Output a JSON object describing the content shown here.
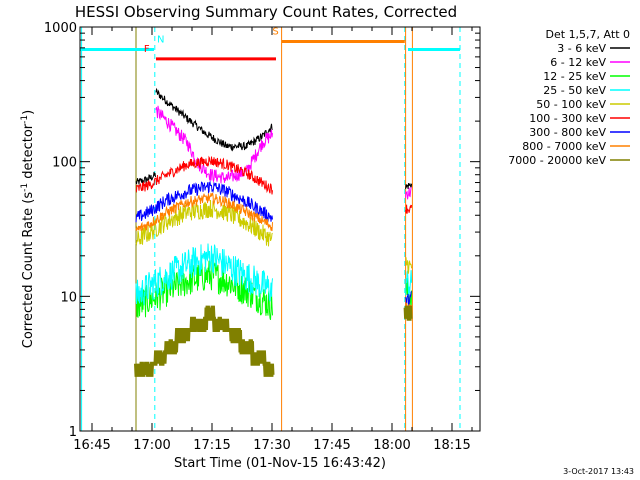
{
  "chart_data": {
    "type": "line",
    "title": "HESSI Observing Summary Count Rates, Corrected",
    "xlabel": "Start Time (01-Nov-15 16:43:42)",
    "ylabel_main": "Corrected Count Rate (s",
    "ylabel_sup1": "-1",
    "ylabel_mid": " detector",
    "ylabel_sup2": "-1",
    "ylabel_end": ")",
    "yscale": "log",
    "ylim": [
      1,
      1000
    ],
    "xlim_min": [
      -1.7,
      98.3
    ],
    "x_ticks": [
      {
        "min": 1.3,
        "label": "16:45"
      },
      {
        "min": 16.3,
        "label": "17:00"
      },
      {
        "min": 31.3,
        "label": "17:15"
      },
      {
        "min": 46.3,
        "label": "17:30"
      },
      {
        "min": 61.3,
        "label": "17:45"
      },
      {
        "min": 76.3,
        "label": "18:00"
      },
      {
        "min": 91.3,
        "label": "18:15"
      }
    ],
    "y_ticks": [
      {
        "value": 1,
        "label": "1"
      },
      {
        "value": 10,
        "label": "10"
      },
      {
        "value": 100,
        "label": "100"
      },
      {
        "value": 1000,
        "label": "1000"
      }
    ],
    "legend_title": "Det 1,5,7, Att 0",
    "legend_placement": "right",
    "timestamp": "3-Oct-2017 13:43",
    "series": [
      {
        "name": "3 - 6 keV",
        "color": "#000000",
        "segments": [
          {
            "x": [
              12.3,
              14.0,
              16.0,
              17.2
            ],
            "y": [
              70,
              72,
              76,
              80
            ]
          },
          {
            "x": [
              17.3,
              20,
              25,
              30,
              35,
              40,
              44,
              46.5
            ],
            "y": [
              330,
              280,
              210,
              160,
              130,
              130,
              155,
              185
            ]
          },
          {
            "x": [
              79.7,
              81.3
            ],
            "y": [
              65,
              68
            ]
          }
        ]
      },
      {
        "name": "6 - 12 keV",
        "color": "#ff00ff",
        "segments": [
          {
            "x": [
              17.3,
              20,
              25,
              28,
              31,
              35,
              40,
              44,
              46.5
            ],
            "y": [
              240,
              200,
              140,
              95,
              80,
              75,
              85,
              140,
              160
            ]
          },
          {
            "x": [
              79.7,
              81.3
            ],
            "y": [
              58,
              60
            ]
          }
        ]
      },
      {
        "name": "12 - 25 keV",
        "color": "#00ff00",
        "segments": [
          {
            "x": [
              12.3,
              16.0,
              20,
              25,
              31,
              35,
              40,
              46.5
            ],
            "y": [
              8.5,
              9.5,
              11,
              13,
              14.5,
              13,
              11,
              8.5
            ]
          },
          {
            "x": [
              79.7,
              81.3
            ],
            "y": [
              11,
              10
            ]
          }
        ]
      },
      {
        "name": "25 - 50 keV",
        "color": "#00ffff",
        "segments": [
          {
            "x": [
              12.3,
              16.0,
              20,
              25,
              31,
              35,
              40,
              46.5
            ],
            "y": [
              10,
              12,
              14,
              17,
              20,
              17,
              14,
              11
            ]
          },
          {
            "x": [
              79.7,
              81.3
            ],
            "y": [
              13,
              12
            ]
          }
        ]
      },
      {
        "name": "50 - 100 keV",
        "color": "#cccc00",
        "segments": [
          {
            "x": [
              12.3,
              16.0,
              20,
              25,
              31,
              35,
              40,
              46.5
            ],
            "y": [
              26,
              30,
              36,
              42,
              45,
              42,
              35,
              26
            ]
          },
          {
            "x": [
              79.7,
              81.3
            ],
            "y": [
              18,
              16
            ]
          }
        ]
      },
      {
        "name": "100 - 300 keV",
        "color": "#ff0000",
        "segments": [
          {
            "x": [
              12.3,
              16.0,
              20,
              25,
              31,
              35,
              40,
              46.5
            ],
            "y": [
              62,
              68,
              80,
              95,
              102,
              95,
              82,
              62
            ]
          },
          {
            "x": [
              79.7,
              81.3
            ],
            "y": [
              45,
              44
            ]
          }
        ]
      },
      {
        "name": "300 - 800 keV",
        "color": "#0000ff",
        "segments": [
          {
            "x": [
              12.3,
              16.0,
              20,
              25,
              31,
              35,
              40,
              46.5
            ],
            "y": [
              38,
              43,
              52,
              60,
              66,
              60,
              50,
              38
            ]
          },
          {
            "x": [
              79.7,
              81.3
            ],
            "y": [
              9,
              10
            ]
          }
        ]
      },
      {
        "name": "800 - 7000 keV",
        "color": "#ff8000",
        "segments": [
          {
            "x": [
              12.3,
              16.0,
              20,
              25,
              31,
              35,
              40,
              46.5
            ],
            "y": [
              31,
              35,
              42,
              50,
              54,
              50,
              42,
              33
            ]
          },
          {
            "x": [
              79.7,
              81.3
            ],
            "y": [
              8.5,
              8
            ]
          }
        ]
      },
      {
        "name": "7000 - 20000 keV",
        "color": "#808000",
        "segments": [
          {
            "x": [
              12.3,
              16.0,
              20,
              25,
              31,
              35,
              40,
              46.5
            ],
            "y": [
              2.6,
              2.7,
              3.6,
              5.0,
              6.5,
              5.2,
              3.8,
              2.5
            ]
          },
          {
            "x": [
              79.7,
              81.3
            ],
            "y": [
              7,
              6.5
            ]
          }
        ]
      }
    ],
    "flags": [
      {
        "label": "",
        "color": "#00ffff",
        "y": 680,
        "x1": -1.7,
        "x2": 16.8
      },
      {
        "label": "N",
        "color": "#00ffff",
        "y": 680,
        "x1": 17.3,
        "x2": 17.3,
        "label_x": 18.5
      },
      {
        "label": "F",
        "color": "#ff0000",
        "y": 580,
        "x1": 17.3,
        "x2": 47.3,
        "label_x": 15.0
      },
      {
        "label": "S",
        "color": "#ff8000",
        "y": 780,
        "x1": 48.7,
        "x2": 79.5,
        "label_x": 47.2
      },
      {
        "label": "",
        "color": "#00ffff",
        "y": 680,
        "x1": 80.3,
        "x2": 93.3
      }
    ],
    "vlines": [
      {
        "x": -1.3,
        "color": "#00ffff",
        "dash": false
      },
      {
        "x": 12.3,
        "color": "#808000",
        "dash": false
      },
      {
        "x": 17.0,
        "color": "#00ffff",
        "dash": true
      },
      {
        "x": 48.7,
        "color": "#ff8000",
        "dash": false
      },
      {
        "x": 79.5,
        "color": "#00ffff",
        "dash": true
      },
      {
        "x": 79.7,
        "color": "#ff8000",
        "dash": false
      },
      {
        "x": 81.4,
        "color": "#ff8000",
        "dash": false
      },
      {
        "x": 93.3,
        "color": "#00ffff",
        "dash": true
      }
    ]
  }
}
